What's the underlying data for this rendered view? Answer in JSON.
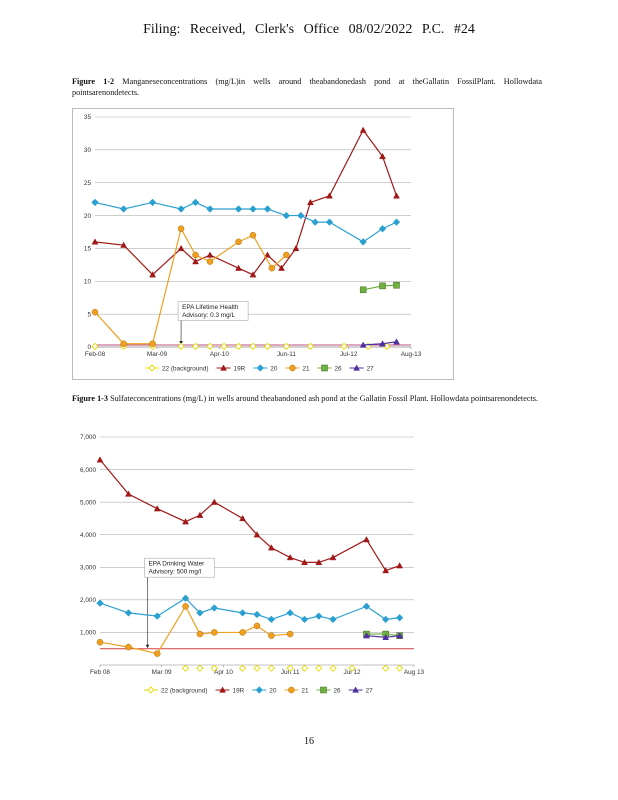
{
  "page": {
    "header": "Filing:  Received,  Clerk's  Office  08/02/2022  P.C.  #24",
    "page_number": "16"
  },
  "captions": [
    {
      "label": "Figure   1-2",
      "text": "Manganeseconcentrations (mg/L)in wells around theabandonedash pond at theGallatin FossilPlant. Hollowdata pointsarenondetects."
    },
    {
      "label": "Figure   1-3",
      "text": "Sulfateconcentrations (mg/L) in wells around theabandoned ash pond at the Gallatin Fossil Plant. Hollowdata pointsarenondetects."
    }
  ],
  "chart_data": [
    {
      "type": "line",
      "x_type": "date",
      "xlim": [
        "2008-02-01",
        "2013-08-01"
      ],
      "ylim": [
        0,
        35
      ],
      "yticks": [
        0,
        5,
        10,
        15,
        20,
        25,
        30,
        35
      ],
      "xticks": [
        {
          "date": "2008-02-01",
          "label": "Feb-08"
        },
        {
          "date": "2009-03-01",
          "label": "Mar-09"
        },
        {
          "date": "2010-04-01",
          "label": "Apr-10"
        },
        {
          "date": "2011-06-01",
          "label": "Jun-11"
        },
        {
          "date": "2012-07-01",
          "label": "Jul-12"
        },
        {
          "date": "2013-08-01",
          "label": "Aug-13"
        }
      ],
      "grid": "horizontal",
      "legend_position": "bottom",
      "reference_line": {
        "value": 0.3,
        "color": "#c05080"
      },
      "annotation": {
        "lines": [
          "EPA Lifetime Health",
          "Advisory: 0.3 mg/L"
        ],
        "date": "2009-08-01",
        "value": 4.8
      },
      "series": [
        {
          "name": "22 (background)",
          "color": "#e8d800",
          "marker": "diamond-open",
          "points": [
            [
              "2008-02-01",
              0.1
            ],
            [
              "2008-08-01",
              0.1
            ],
            [
              "2009-02-01",
              0.1
            ],
            [
              "2009-08-01",
              0.1
            ],
            [
              "2009-11-01",
              0.1
            ],
            [
              "2010-02-01",
              0.1
            ],
            [
              "2010-05-01",
              0.1
            ],
            [
              "2010-08-01",
              0.1
            ],
            [
              "2010-11-01",
              0.1
            ],
            [
              "2011-02-01",
              0.1
            ],
            [
              "2011-06-01",
              0.1
            ],
            [
              "2011-11-01",
              0.1
            ],
            [
              "2012-06-01",
              0.1
            ],
            [
              "2012-11-01",
              0.1
            ],
            [
              "2013-03-01",
              0.1
            ]
          ]
        },
        {
          "name": "19R",
          "color": "#a01818",
          "marker": "triangle",
          "points": [
            [
              "2008-02-01",
              16
            ],
            [
              "2008-08-01",
              15.5
            ],
            [
              "2009-02-01",
              11
            ],
            [
              "2009-08-01",
              15
            ],
            [
              "2009-11-01",
              13
            ],
            [
              "2010-02-01",
              14
            ],
            [
              "2010-08-01",
              12
            ],
            [
              "2010-11-01",
              11
            ],
            [
              "2011-02-01",
              14
            ],
            [
              "2011-05-01",
              12
            ],
            [
              "2011-08-01",
              15
            ],
            [
              "2011-11-01",
              22
            ],
            [
              "2012-03-01",
              23
            ],
            [
              "2012-10-01",
              33
            ],
            [
              "2013-02-01",
              29
            ],
            [
              "2013-05-01",
              23
            ]
          ]
        },
        {
          "name": "20",
          "color": "#2aa0d0",
          "marker": "diamond",
          "points": [
            [
              "2008-02-01",
              22
            ],
            [
              "2008-08-01",
              21
            ],
            [
              "2009-02-01",
              22
            ],
            [
              "2009-08-01",
              21
            ],
            [
              "2009-11-01",
              22
            ],
            [
              "2010-02-01",
              21
            ],
            [
              "2010-08-01",
              21
            ],
            [
              "2010-11-01",
              21
            ],
            [
              "2011-02-01",
              21
            ],
            [
              "2011-06-01",
              20
            ],
            [
              "2011-09-01",
              20
            ],
            [
              "2011-12-01",
              19
            ],
            [
              "2012-03-01",
              19
            ],
            [
              "2012-10-01",
              16
            ],
            [
              "2013-02-01",
              18
            ],
            [
              "2013-05-01",
              19
            ]
          ]
        },
        {
          "name": "21",
          "color": "#f0a020",
          "marker": "circle",
          "points": [
            [
              "2008-02-01",
              5.3
            ],
            [
              "2008-08-01",
              0.5
            ],
            [
              "2009-02-01",
              0.5
            ],
            [
              "2009-08-01",
              18
            ],
            [
              "2009-11-01",
              14
            ],
            [
              "2010-02-01",
              13
            ],
            [
              "2010-08-01",
              16
            ],
            [
              "2010-11-01",
              17
            ],
            [
              "2011-03-01",
              12
            ],
            [
              "2011-06-01",
              14
            ]
          ]
        },
        {
          "name": "26",
          "color": "#70b040",
          "marker": "square",
          "points": [
            [
              "2012-10-01",
              8.7
            ],
            [
              "2013-02-01",
              9.3
            ],
            [
              "2013-05-01",
              9.4
            ]
          ]
        },
        {
          "name": "27",
          "color": "#5030a0",
          "marker": "triangle",
          "points": [
            [
              "2012-10-01",
              0.3
            ],
            [
              "2013-02-01",
              0.5
            ],
            [
              "2013-05-01",
              0.8
            ]
          ]
        }
      ]
    },
    {
      "type": "line",
      "x_type": "date",
      "xlim": [
        "2008-02-01",
        "2013-08-01"
      ],
      "ylim": [
        0,
        7000
      ],
      "yticks": [
        1000,
        2000,
        3000,
        4000,
        5000,
        6000,
        7000
      ],
      "ytick_labels": [
        "1,000",
        "2,000",
        "3,000",
        "4,000",
        "5,000",
        "6,000",
        "7,000"
      ],
      "xticks": [
        {
          "date": "2008-02-01",
          "label": "Feb 08"
        },
        {
          "date": "2009-03-01",
          "label": "Mar 09"
        },
        {
          "date": "2010-04-01",
          "label": "Apr 10"
        },
        {
          "date": "2011-06-01",
          "label": "Jun 11"
        },
        {
          "date": "2012-07-01",
          "label": "Jul 12"
        },
        {
          "date": "2013-08-01",
          "label": "Aug 13"
        }
      ],
      "grid": "horizontal",
      "legend_position": "bottom",
      "reference_line": {
        "value": 500,
        "color": "#d04040"
      },
      "annotation": {
        "lines": [
          "EPA Drinking Water",
          "Advisory: 500 mg/l"
        ],
        "date": "2008-12-01",
        "value": 2850
      },
      "series": [
        {
          "name": "22 (background)",
          "color": "#e8d800",
          "marker": "diamond-open",
          "points": [
            [
              "2009-08-01",
              -100
            ],
            [
              "2009-11-01",
              -100
            ],
            [
              "2010-02-01",
              -100
            ],
            [
              "2010-08-01",
              -100
            ],
            [
              "2010-11-01",
              -100
            ],
            [
              "2011-02-01",
              -100
            ],
            [
              "2011-06-01",
              -100
            ],
            [
              "2011-09-01",
              -100
            ],
            [
              "2011-12-01",
              -100
            ],
            [
              "2012-03-01",
              -100
            ],
            [
              "2012-07-01",
              -100
            ],
            [
              "2013-02-01",
              -100
            ],
            [
              "2013-05-01",
              -100
            ]
          ]
        },
        {
          "name": "19R",
          "color": "#a01818",
          "marker": "triangle",
          "points": [
            [
              "2008-02-01",
              6300
            ],
            [
              "2008-08-01",
              5250
            ],
            [
              "2009-02-01",
              4800
            ],
            [
              "2009-08-01",
              4400
            ],
            [
              "2009-11-01",
              4600
            ],
            [
              "2010-02-01",
              5000
            ],
            [
              "2010-08-01",
              4500
            ],
            [
              "2010-11-01",
              4000
            ],
            [
              "2011-02-01",
              3600
            ],
            [
              "2011-06-01",
              3300
            ],
            [
              "2011-09-01",
              3150
            ],
            [
              "2011-12-01",
              3150
            ],
            [
              "2012-03-01",
              3300
            ],
            [
              "2012-10-01",
              3850
            ],
            [
              "2013-02-01",
              2900
            ],
            [
              "2013-05-01",
              3050
            ]
          ]
        },
        {
          "name": "20",
          "color": "#2aa0d0",
          "marker": "diamond",
          "points": [
            [
              "2008-02-01",
              1900
            ],
            [
              "2008-08-01",
              1600
            ],
            [
              "2009-02-01",
              1500
            ],
            [
              "2009-08-01",
              2050
            ],
            [
              "2009-11-01",
              1600
            ],
            [
              "2010-02-01",
              1750
            ],
            [
              "2010-08-01",
              1600
            ],
            [
              "2010-11-01",
              1550
            ],
            [
              "2011-02-01",
              1400
            ],
            [
              "2011-06-01",
              1600
            ],
            [
              "2011-09-01",
              1400
            ],
            [
              "2011-12-01",
              1500
            ],
            [
              "2012-03-01",
              1400
            ],
            [
              "2012-10-01",
              1800
            ],
            [
              "2013-02-01",
              1400
            ],
            [
              "2013-05-01",
              1450
            ]
          ]
        },
        {
          "name": "21",
          "color": "#f0a020",
          "marker": "circle",
          "points": [
            [
              "2008-02-01",
              700
            ],
            [
              "2008-08-01",
              550
            ],
            [
              "2009-02-01",
              350
            ],
            [
              "2009-08-01",
              1800
            ],
            [
              "2009-11-01",
              950
            ],
            [
              "2010-02-01",
              1000
            ],
            [
              "2010-08-01",
              1000
            ],
            [
              "2010-11-01",
              1200
            ],
            [
              "2011-02-01",
              900
            ],
            [
              "2011-06-01",
              950
            ]
          ]
        },
        {
          "name": "26",
          "color": "#70b040",
          "marker": "square",
          "points": [
            [
              "2012-10-01",
              950
            ],
            [
              "2013-02-01",
              950
            ],
            [
              "2013-05-01",
              900
            ]
          ]
        },
        {
          "name": "27",
          "color": "#5030a0",
          "marker": "triangle",
          "points": [
            [
              "2012-10-01",
              900
            ],
            [
              "2013-02-01",
              850
            ],
            [
              "2013-05-01",
              900
            ]
          ]
        }
      ]
    }
  ]
}
